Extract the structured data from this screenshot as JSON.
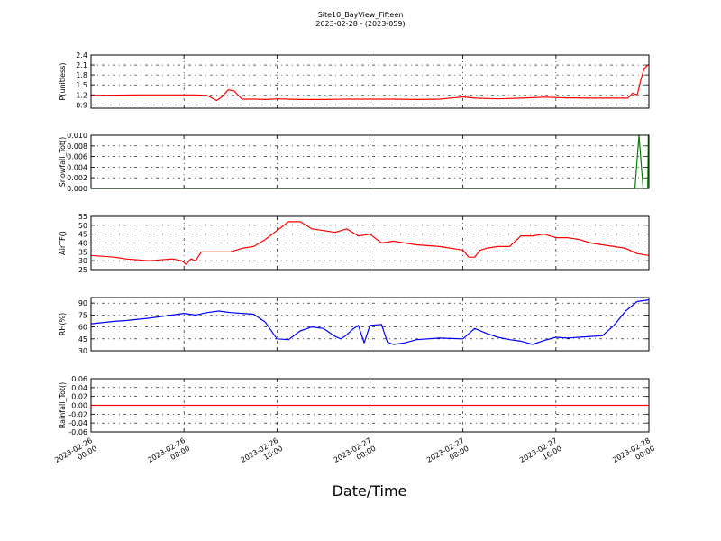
{
  "figure": {
    "title_line1": "Site10_BayView_Fifteen",
    "title_line2": "2023-02-28 - (2023-059)",
    "xlabel": "Date/Time"
  },
  "chart_data": [
    {
      "type": "line",
      "ylabel": "P(unitless)",
      "ylim": [
        0.8,
        2.4
      ],
      "yticks": [
        0.9,
        1.2,
        1.5,
        1.8,
        2.1,
        2.4
      ],
      "ytick_labels": [
        "0.9",
        "1.2",
        "1.5",
        "1.8",
        "2.1",
        "2.4"
      ],
      "color": "#ff0000",
      "xlim": [
        0,
        48
      ],
      "grid": true,
      "series": [
        {
          "x": [
            0,
            2,
            4,
            6,
            8,
            9,
            10,
            10.8,
            11.3,
            11.8,
            12.3,
            13,
            14,
            15,
            16,
            17,
            18,
            20,
            22,
            24,
            26,
            28,
            30,
            31.5,
            32,
            33,
            35,
            37,
            39,
            41,
            43,
            45,
            46.2,
            46.6,
            47,
            47.3,
            47.6,
            48
          ],
          "y": [
            1.18,
            1.19,
            1.2,
            1.2,
            1.2,
            1.2,
            1.18,
            1.03,
            1.15,
            1.35,
            1.32,
            1.07,
            1.07,
            1.06,
            1.08,
            1.07,
            1.06,
            1.06,
            1.07,
            1.07,
            1.07,
            1.06,
            1.07,
            1.12,
            1.14,
            1.1,
            1.08,
            1.1,
            1.13,
            1.11,
            1.1,
            1.1,
            1.1,
            1.25,
            1.2,
            1.65,
            2.0,
            2.12
          ]
        }
      ]
    },
    {
      "type": "line",
      "ylabel": "Snowfall_Tot()",
      "ylim": [
        0,
        0.01
      ],
      "yticks": [
        0,
        0.002,
        0.004,
        0.006,
        0.008,
        0.01
      ],
      "ytick_labels": [
        "0.000",
        "0.002",
        "0.004",
        "0.006",
        "0.008",
        "0.010"
      ],
      "color": "#008000",
      "xlim": [
        0,
        48
      ],
      "grid": true,
      "series": [
        {
          "x": [
            0,
            46.8,
            47.15,
            47.5,
            47.9,
            47.95,
            48
          ],
          "y": [
            0,
            0,
            0.01,
            0,
            0,
            0.01,
            0.01
          ]
        }
      ]
    },
    {
      "type": "line",
      "ylabel": "AirTF()",
      "ylim": [
        25,
        55
      ],
      "yticks": [
        25,
        30,
        35,
        40,
        45,
        50,
        55
      ],
      "ytick_labels": [
        "25",
        "30",
        "35",
        "40",
        "45",
        "50",
        "55"
      ],
      "color": "#ff0000",
      "xlim": [
        0,
        48
      ],
      "grid": true,
      "series": [
        {
          "x": [
            0,
            2,
            3,
            5,
            7,
            7.8,
            8.2,
            8.6,
            9,
            9.5,
            10,
            11,
            12,
            13,
            14,
            15,
            16,
            17,
            18,
            19,
            20,
            21,
            22,
            23,
            24,
            25,
            26,
            27,
            28,
            30,
            32,
            32.5,
            33,
            33.5,
            34,
            35,
            36,
            37,
            38,
            39,
            40,
            41,
            42,
            43,
            44,
            45,
            46,
            47,
            48
          ],
          "y": [
            33,
            32,
            31,
            30,
            31,
            30,
            28,
            31,
            30,
            35,
            35,
            35,
            35,
            37,
            38,
            42,
            47,
            52,
            52,
            48,
            47,
            46,
            48,
            44,
            45,
            40,
            41,
            40,
            39,
            38,
            36,
            32,
            32,
            36,
            37,
            38,
            38,
            44,
            44,
            45,
            43,
            43,
            42,
            40,
            39,
            38,
            37,
            34,
            33
          ]
        }
      ]
    },
    {
      "type": "line",
      "ylabel": "RH(%)",
      "ylim": [
        30,
        97
      ],
      "yticks": [
        30,
        45,
        60,
        75,
        90
      ],
      "ytick_labels": [
        "30",
        "45",
        "60",
        "75",
        "90"
      ],
      "color": "#0000ff",
      "xlim": [
        0,
        48
      ],
      "grid": true,
      "series": [
        {
          "x": [
            0,
            2,
            3,
            5,
            7,
            8,
            9,
            10,
            11,
            12,
            13,
            14,
            15,
            16,
            17,
            18,
            19,
            20,
            21,
            21.5,
            22,
            22.5,
            23,
            23.5,
            24,
            25,
            25.5,
            26,
            26.5,
            27,
            28,
            30,
            32,
            33,
            34,
            35,
            36,
            37,
            37.5,
            38,
            39,
            40,
            41,
            42,
            43,
            44,
            45,
            46,
            47,
            48
          ],
          "y": [
            64,
            67,
            68,
            71,
            75,
            77,
            75,
            78,
            80,
            78,
            77,
            76,
            66,
            45,
            44,
            55,
            60,
            58,
            48,
            45,
            50,
            57,
            62,
            40,
            62,
            63,
            41,
            38,
            39,
            40,
            44,
            46,
            45,
            58,
            52,
            47,
            44,
            42,
            40,
            38,
            43,
            47,
            46,
            47,
            48,
            49,
            62,
            80,
            92,
            94
          ]
        }
      ]
    },
    {
      "type": "line",
      "ylabel": "Rainfall_Tot()",
      "ylim": [
        -0.06,
        0.06
      ],
      "yticks": [
        -0.06,
        -0.04,
        -0.02,
        0,
        0.02,
        0.04,
        0.06
      ],
      "ytick_labels": [
        "-0.06",
        "-0.04",
        "-0.02",
        "0.00",
        "0.02",
        "0.04",
        "0.06"
      ],
      "color": "#ff0000",
      "xlim": [
        0,
        48
      ],
      "grid": true,
      "series": [
        {
          "x": [
            0,
            48
          ],
          "y": [
            0,
            0
          ]
        }
      ]
    }
  ],
  "x_axis": {
    "ticks": [
      0,
      8,
      16,
      24,
      32,
      40,
      48
    ],
    "tick_labels": [
      [
        "2023-02-26",
        "00:00"
      ],
      [
        "2023-02-26",
        "08:00"
      ],
      [
        "2023-02-26",
        "16:00"
      ],
      [
        "2023-02-27",
        "00:00"
      ],
      [
        "2023-02-27",
        "08:00"
      ],
      [
        "2023-02-27",
        "16:00"
      ],
      [
        "2023-02-28",
        "00:00"
      ]
    ]
  }
}
